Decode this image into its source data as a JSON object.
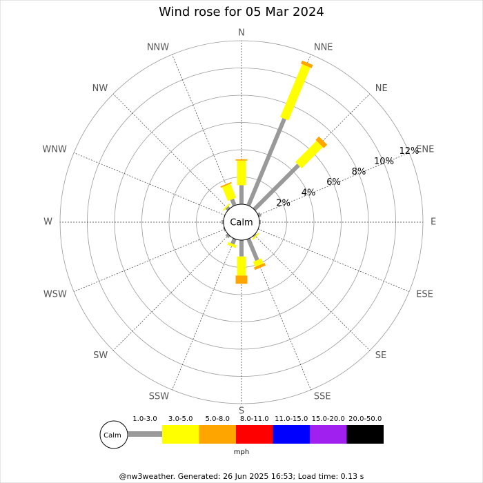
{
  "chart_data": {
    "type": "windrose",
    "title": "Wind rose for 05 Mar 2024",
    "categories": [
      "N",
      "NNE",
      "NE",
      "ENE",
      "E",
      "ESE",
      "SE",
      "SSE",
      "S",
      "SSW",
      "SW",
      "WSW",
      "W",
      "WNW",
      "NW",
      "NNW"
    ],
    "center_label": "Calm",
    "rlim": [
      0,
      12
    ],
    "rticks": [
      {
        "value": 2,
        "label": "2%"
      },
      {
        "value": 4,
        "label": "4%"
      },
      {
        "value": 6,
        "label": "6%"
      },
      {
        "value": 8,
        "label": "8%"
      },
      {
        "value": 10,
        "label": "10%"
      },
      {
        "value": 12,
        "label": "12%"
      }
    ],
    "unit_label": "mph",
    "series": [
      {
        "name": "1.0-3.0",
        "color": "#999999",
        "values": [
          1.4,
          6.9,
          4.6,
          0.2,
          0.1,
          0,
          0.1,
          1.7,
          1.2,
          0.4,
          0.2,
          0.1,
          0.15,
          0,
          0.2,
          0.5
        ]
      },
      {
        "name": "3.0-5.0",
        "color": "#ffff00",
        "values": [
          1.8,
          4.2,
          2.2,
          0,
          0,
          0,
          0.1,
          0.4,
          1.4,
          0.2,
          0,
          0,
          0,
          0,
          0.1,
          1.1
        ]
      },
      {
        "name": "5.0-8.0",
        "color": "#ffa500",
        "values": [
          0.1,
          0.25,
          0.35,
          0,
          0,
          0,
          0,
          0.2,
          0.6,
          0,
          0,
          0,
          0,
          0,
          0,
          0.1
        ]
      },
      {
        "name": "8.0-11.0",
        "color": "#ff0000",
        "values": [
          0,
          0,
          0,
          0,
          0,
          0,
          0,
          0,
          0,
          0,
          0,
          0,
          0,
          0,
          0,
          0
        ]
      },
      {
        "name": "11.0-15.0",
        "color": "#0000ff",
        "values": [
          0,
          0,
          0,
          0,
          0,
          0,
          0,
          0,
          0,
          0,
          0,
          0,
          0,
          0,
          0,
          0
        ]
      },
      {
        "name": "15.0-20.0",
        "color": "#a020f0",
        "values": [
          0,
          0,
          0,
          0,
          0,
          0,
          0,
          0,
          0,
          0,
          0,
          0,
          0,
          0,
          0,
          0
        ]
      },
      {
        "name": "20.0-50.0",
        "color": "#000000",
        "values": [
          0,
          0,
          0,
          0,
          0,
          0,
          0,
          0,
          0,
          0,
          0,
          0,
          0,
          0,
          0,
          0
        ]
      }
    ]
  },
  "footer": "@nw3weather. Generated: 26 Jun 2025 16:53; Load time: 0.13 s"
}
